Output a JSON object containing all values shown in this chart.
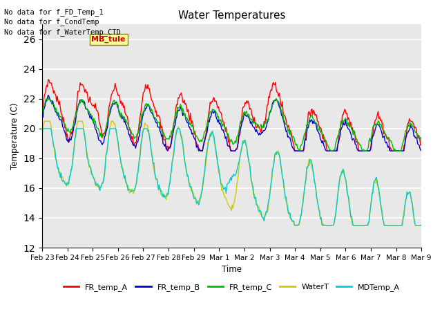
{
  "title": "Water Temperatures",
  "xlabel": "Time",
  "ylabel": "Temperature (C)",
  "ylim": [
    12,
    27
  ],
  "yticks": [
    12,
    14,
    16,
    18,
    20,
    22,
    24,
    26
  ],
  "plot_bg_color": "#e8e8e8",
  "grid_color": "white",
  "annotations": [
    "No data for f_FD_Temp_1",
    "No data for f_CondTemp",
    "No data for f_WaterTemp_CTD"
  ],
  "mb_tule_label": "MB_tule",
  "mb_tule_color": "#cc0000",
  "mb_tule_bg": "#ffff99",
  "series": {
    "FR_temp_A": {
      "color": "#ff0000",
      "label": "FR_temp_A"
    },
    "FR_temp_B": {
      "color": "#0000cc",
      "label": "FR_temp_B"
    },
    "FR_temp_C": {
      "color": "#00bb00",
      "label": "FR_temp_C"
    },
    "WaterT": {
      "color": "#cccc00",
      "label": "WaterT"
    },
    "MDTemp_A": {
      "color": "#00cccc",
      "label": "MDTemp_A"
    }
  },
  "xtick_labels": [
    "Feb 23",
    "Feb 24",
    "Feb 25",
    "Feb 26",
    "Feb 27",
    "Feb 28",
    "Feb 29",
    "Mar 1",
    "Mar 2",
    "Mar 3",
    "Mar 4",
    "Mar 5",
    "Mar 6",
    "Mar 7",
    "Mar 8",
    "Mar 9"
  ],
  "xtick_positions": [
    0,
    1,
    2,
    3,
    4,
    5,
    6,
    7,
    8,
    9,
    10,
    11,
    12,
    13,
    14,
    15
  ]
}
